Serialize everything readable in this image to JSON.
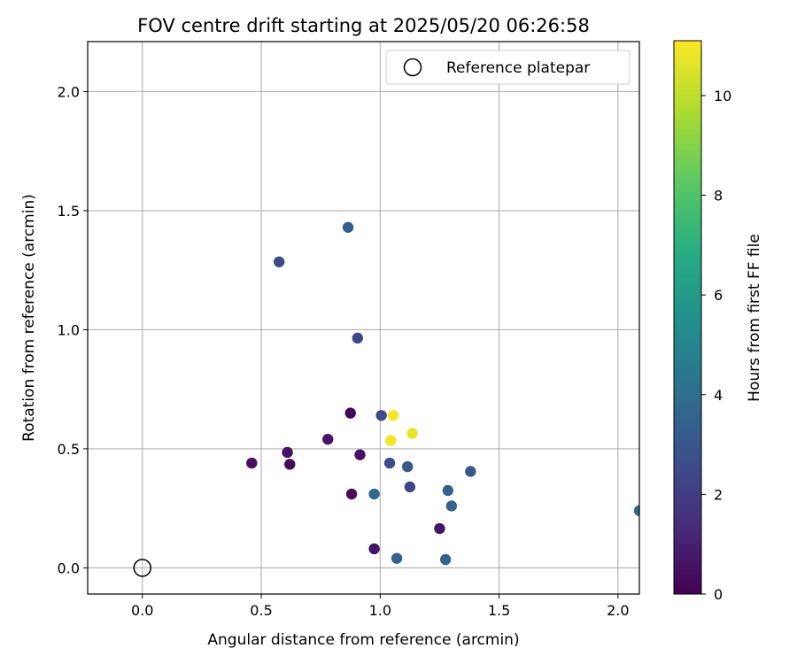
{
  "chart_data": {
    "type": "scatter",
    "title": "FOV centre drift starting at 2025/05/20 06:26:58",
    "xlabel": "Angular distance from reference (arcmin)",
    "ylabel": "Rotation from reference (arcmin)",
    "xlim": [
      -0.23,
      2.09
    ],
    "ylim": [
      -0.11,
      2.21
    ],
    "xticks": [
      "0.0",
      "0.5",
      "1.0",
      "1.5",
      "2.0"
    ],
    "xtick_values": [
      0.0,
      0.5,
      1.0,
      1.5,
      2.0
    ],
    "yticks": [
      "0.0",
      "0.5",
      "1.0",
      "1.5",
      "2.0"
    ],
    "ytick_values": [
      0.0,
      0.5,
      1.0,
      1.5,
      2.0
    ],
    "grid": true,
    "legend": {
      "placement": "top-right",
      "entries": [
        {
          "label": "Reference platepar",
          "marker": "open-circle"
        }
      ]
    },
    "reference_point": {
      "x": 0.0,
      "y": 0.0
    },
    "colorbar": {
      "label": "Hours from first FF file",
      "colormap": "viridis",
      "range": [
        0,
        11.1
      ],
      "ticks": [
        "0",
        "2",
        "4",
        "6",
        "8",
        "10"
      ],
      "tick_values": [
        0,
        2,
        4,
        6,
        8,
        10
      ]
    },
    "points": [
      {
        "x": 0.46,
        "y": 0.44,
        "hours": 0.4
      },
      {
        "x": 0.61,
        "y": 0.485,
        "hours": 0.5
      },
      {
        "x": 0.62,
        "y": 0.435,
        "hours": 0.3
      },
      {
        "x": 0.78,
        "y": 0.54,
        "hours": 0.6
      },
      {
        "x": 0.875,
        "y": 0.65,
        "hours": 0.2
      },
      {
        "x": 0.88,
        "y": 0.31,
        "hours": 0.3
      },
      {
        "x": 0.915,
        "y": 0.475,
        "hours": 0.5
      },
      {
        "x": 0.975,
        "y": 0.08,
        "hours": 0.6
      },
      {
        "x": 1.25,
        "y": 0.165,
        "hours": 0.6
      },
      {
        "x": 0.575,
        "y": 1.285,
        "hours": 2.5
      },
      {
        "x": 0.865,
        "y": 1.43,
        "hours": 3.2
      },
      {
        "x": 0.905,
        "y": 0.965,
        "hours": 2.4
      },
      {
        "x": 1.005,
        "y": 0.64,
        "hours": 2.5
      },
      {
        "x": 1.04,
        "y": 0.44,
        "hours": 2.6
      },
      {
        "x": 1.115,
        "y": 0.425,
        "hours": 3.0
      },
      {
        "x": 1.125,
        "y": 0.34,
        "hours": 2.3
      },
      {
        "x": 0.975,
        "y": 0.31,
        "hours": 3.7
      },
      {
        "x": 1.07,
        "y": 0.04,
        "hours": 3.4
      },
      {
        "x": 1.275,
        "y": 0.035,
        "hours": 3.5
      },
      {
        "x": 1.285,
        "y": 0.325,
        "hours": 3.4
      },
      {
        "x": 1.3,
        "y": 0.26,
        "hours": 3.5
      },
      {
        "x": 1.38,
        "y": 0.405,
        "hours": 3.0
      },
      {
        "x": 2.09,
        "y": 0.24,
        "hours": 3.8
      },
      {
        "x": 1.055,
        "y": 0.64,
        "hours": 11.0
      },
      {
        "x": 1.045,
        "y": 0.535,
        "hours": 10.9
      },
      {
        "x": 1.135,
        "y": 0.565,
        "hours": 10.7
      }
    ]
  }
}
